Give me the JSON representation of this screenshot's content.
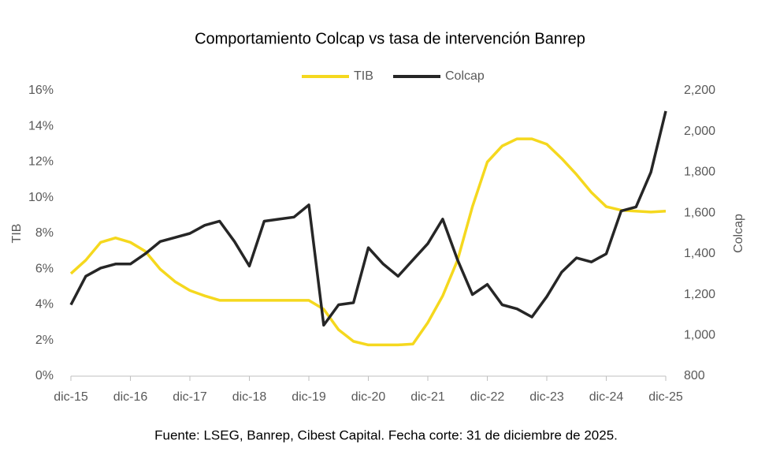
{
  "chart_data": {
    "type": "line",
    "title": "Comportamiento Colcap vs tasa de intervención Banrep",
    "footnote": "Fuente: LSEG, Banrep, Cibest Capital. Fecha corte: 31 de diciembre de 2025.",
    "y_label": "TIB",
    "y2_label": "Colcap",
    "x": [
      "2015-12",
      "2016-03",
      "2016-06",
      "2016-09",
      "2016-12",
      "2017-03",
      "2017-06",
      "2017-09",
      "2017-12",
      "2018-03",
      "2018-06",
      "2018-09",
      "2018-12",
      "2019-03",
      "2019-06",
      "2019-09",
      "2019-12",
      "2020-03",
      "2020-06",
      "2020-09",
      "2020-12",
      "2021-03",
      "2021-06",
      "2021-09",
      "2021-12",
      "2022-03",
      "2022-06",
      "2022-09",
      "2022-12",
      "2023-03",
      "2023-06",
      "2023-09",
      "2023-12",
      "2024-03",
      "2024-06",
      "2024-09",
      "2024-12",
      "2025-03",
      "2025-06",
      "2025-09",
      "2025-12"
    ],
    "xlim": [
      "2015-12",
      "2025-12"
    ],
    "xticks": [
      {
        "value": "2015-12",
        "label": "dic-15"
      },
      {
        "value": "2016-12",
        "label": "dic-16"
      },
      {
        "value": "2017-12",
        "label": "dic-17"
      },
      {
        "value": "2018-12",
        "label": "dic-18"
      },
      {
        "value": "2019-12",
        "label": "dic-19"
      },
      {
        "value": "2020-12",
        "label": "dic-20"
      },
      {
        "value": "2021-12",
        "label": "dic-21"
      },
      {
        "value": "2022-12",
        "label": "dic-22"
      },
      {
        "value": "2023-12",
        "label": "dic-23"
      },
      {
        "value": "2024-12",
        "label": "dic-24"
      },
      {
        "value": "2025-12",
        "label": "dic-25"
      }
    ],
    "ylim": [
      0,
      16
    ],
    "yticks": [
      {
        "value": 0,
        "label": "0%"
      },
      {
        "value": 2,
        "label": "2%"
      },
      {
        "value": 4,
        "label": "4%"
      },
      {
        "value": 6,
        "label": "6%"
      },
      {
        "value": 8,
        "label": "8%"
      },
      {
        "value": 10,
        "label": "10%"
      },
      {
        "value": 12,
        "label": "12%"
      },
      {
        "value": 14,
        "label": "14%"
      },
      {
        "value": 16,
        "label": "16%"
      }
    ],
    "y2lim": [
      800,
      2200
    ],
    "y2ticks": [
      800,
      {
        "value": 1000,
        "label": "1,000"
      },
      {
        "value": 1200,
        "label": "1,200"
      },
      {
        "value": 1400,
        "label": "1,400"
      },
      {
        "value": 1600,
        "label": "1,600"
      },
      {
        "value": 1800,
        "label": "1,800"
      },
      {
        "value": 2000,
        "label": "2,000"
      },
      {
        "value": 2200,
        "label": "2,200"
      }
    ],
    "series": [
      {
        "name": "TIB",
        "color": "#f5d81e",
        "values": [
          5.75,
          6.5,
          7.5,
          7.75,
          7.5,
          7.0,
          6.0,
          5.3,
          4.8,
          4.5,
          4.25,
          4.25,
          4.25,
          4.25,
          4.25,
          4.25,
          4.25,
          3.75,
          2.6,
          1.95,
          1.75,
          1.75,
          1.75,
          1.8,
          3.0,
          4.5,
          6.5,
          9.5,
          12.0,
          12.9,
          13.3,
          13.3,
          13.0,
          12.2,
          11.3,
          10.3,
          9.5,
          9.3,
          9.25,
          9.2,
          9.25
        ]
      },
      {
        "name": "Colcap",
        "color": "#262626",
        "axis": "y2",
        "values": [
          1150,
          1290,
          1330,
          1350,
          1350,
          1400,
          1460,
          1480,
          1500,
          1540,
          1560,
          1460,
          1340,
          1560,
          1570,
          1580,
          1640,
          1050,
          1150,
          1160,
          1430,
          1350,
          1290,
          1370,
          1450,
          1570,
          1370,
          1200,
          1250,
          1150,
          1130,
          1090,
          1190,
          1310,
          1380,
          1360,
          1400,
          1610,
          1630,
          1800,
          2100
        ]
      }
    ]
  }
}
